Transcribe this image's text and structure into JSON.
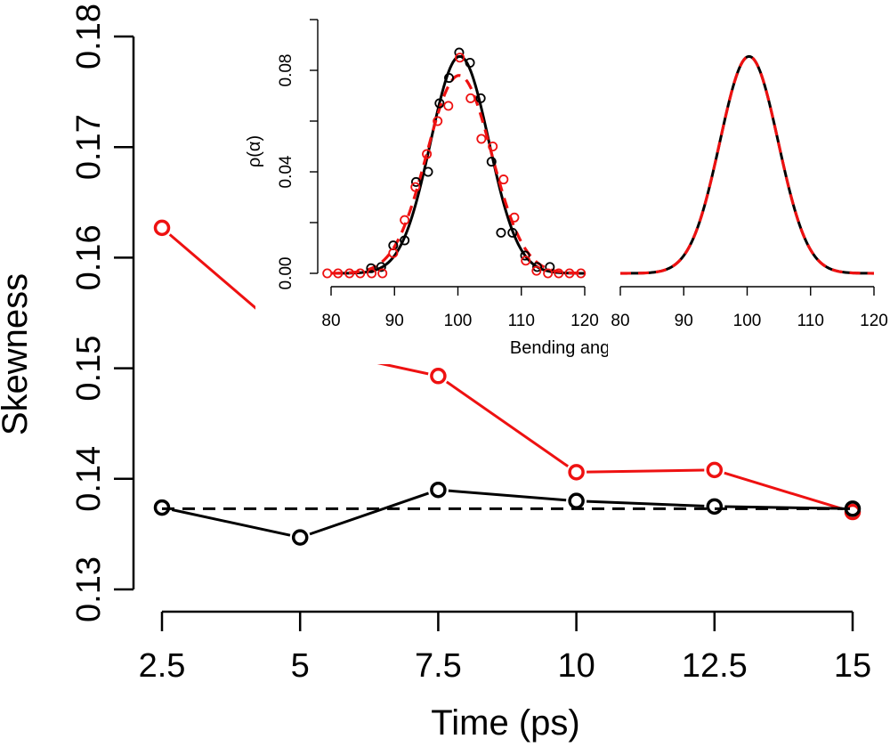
{
  "chart_data": [
    {
      "type": "line",
      "title": "",
      "xlabel": "Time (ps)",
      "ylabel": "Skewness",
      "x": [
        2.5,
        5,
        7.5,
        10,
        12.5,
        15
      ],
      "xticks": [
        "2.5",
        "5",
        "7.5",
        "10",
        "12.5",
        "15"
      ],
      "yticks": [
        "0.13",
        "0.14",
        "0.15",
        "0.16",
        "0.17",
        "0.18"
      ],
      "xlim": [
        2.5,
        15
      ],
      "ylim": [
        0.13,
        0.18
      ],
      "grid": false,
      "series": [
        {
          "color": "#ee1111",
          "style": "solid-markers",
          "values": [
            0.1627,
            0.152,
            0.1493,
            0.1406,
            0.1408,
            0.137
          ]
        },
        {
          "color": "#000000",
          "style": "solid-markers",
          "values": [
            0.1374,
            0.1347,
            0.139,
            0.138,
            0.1375,
            0.1373
          ]
        },
        {
          "color": "#000000",
          "style": "dashed",
          "values": [
            0.1373,
            0.1373,
            0.1373,
            0.1373,
            0.1373,
            0.1373
          ]
        }
      ]
    },
    {
      "type": "line",
      "title": "",
      "xlabel": "Bending angle α (Deg.)",
      "ylabel": "ρ(α)",
      "xlim": [
        80,
        120
      ],
      "ylim": [
        0,
        0.1
      ],
      "xticks": [
        "80",
        "90",
        "100",
        "110",
        "120"
      ],
      "yticks": [
        "0.00",
        "0.04",
        "0.08"
      ],
      "grid": false,
      "series": [
        {
          "color": "#000000",
          "style": "solid",
          "curve": {
            "mean": 100.3,
            "sd": 4.6,
            "peak": 0.0855
          }
        },
        {
          "color": "#ee1111",
          "style": "dashed",
          "curve": {
            "mean": 100.2,
            "sd": 5.1,
            "peak": 0.078
          }
        },
        {
          "color": "#000000",
          "style": "markers",
          "x": [
            86.3,
            87.9,
            89.8,
            91.6,
            93.4,
            95.3,
            97.1,
            98.6,
            100.2,
            101.9,
            103.6,
            105.3,
            106.8,
            108.6,
            110.6,
            112.5,
            114.5
          ],
          "values": [
            0.002,
            0.0025,
            0.011,
            0.013,
            0.036,
            0.04,
            0.067,
            0.077,
            0.087,
            0.083,
            0.069,
            0.044,
            0.016,
            0.016,
            0.007,
            0.0025,
            0.0025
          ]
        },
        {
          "color": "#ee1111",
          "style": "markers",
          "x": [
            79.4,
            81.1,
            82.9,
            84.6,
            86.4,
            88.1,
            89.8,
            91.6,
            93.3,
            95.1,
            96.8,
            98.5,
            100.3,
            102.0,
            103.7,
            105.5,
            107.2,
            108.9,
            110.7,
            112.4,
            114.2,
            115.9,
            117.6,
            119.4
          ],
          "values": [
            0.0,
            0.0,
            0.0,
            0.0,
            0.0,
            0.0,
            0.008,
            0.021,
            0.034,
            0.047,
            0.06,
            0.066,
            0.085,
            0.069,
            0.053,
            0.05,
            0.037,
            0.022,
            0.005,
            0.001,
            0.0,
            0.0,
            0.0,
            0.0
          ]
        }
      ]
    },
    {
      "type": "line",
      "title": "",
      "xlabel": "",
      "ylabel": "",
      "xlim": [
        80,
        120
      ],
      "ylim": [
        0,
        0.1
      ],
      "xticks": [
        "80",
        "90",
        "100",
        "110",
        "120"
      ],
      "grid": false,
      "series": [
        {
          "color": "#000000",
          "style": "solid",
          "curve": {
            "mean": 100.3,
            "sd": 4.6,
            "peak": 0.0855
          }
        },
        {
          "color": "#ee1111",
          "style": "dashed",
          "curve": {
            "mean": 100.3,
            "sd": 4.6,
            "peak": 0.0855
          }
        }
      ]
    }
  ]
}
